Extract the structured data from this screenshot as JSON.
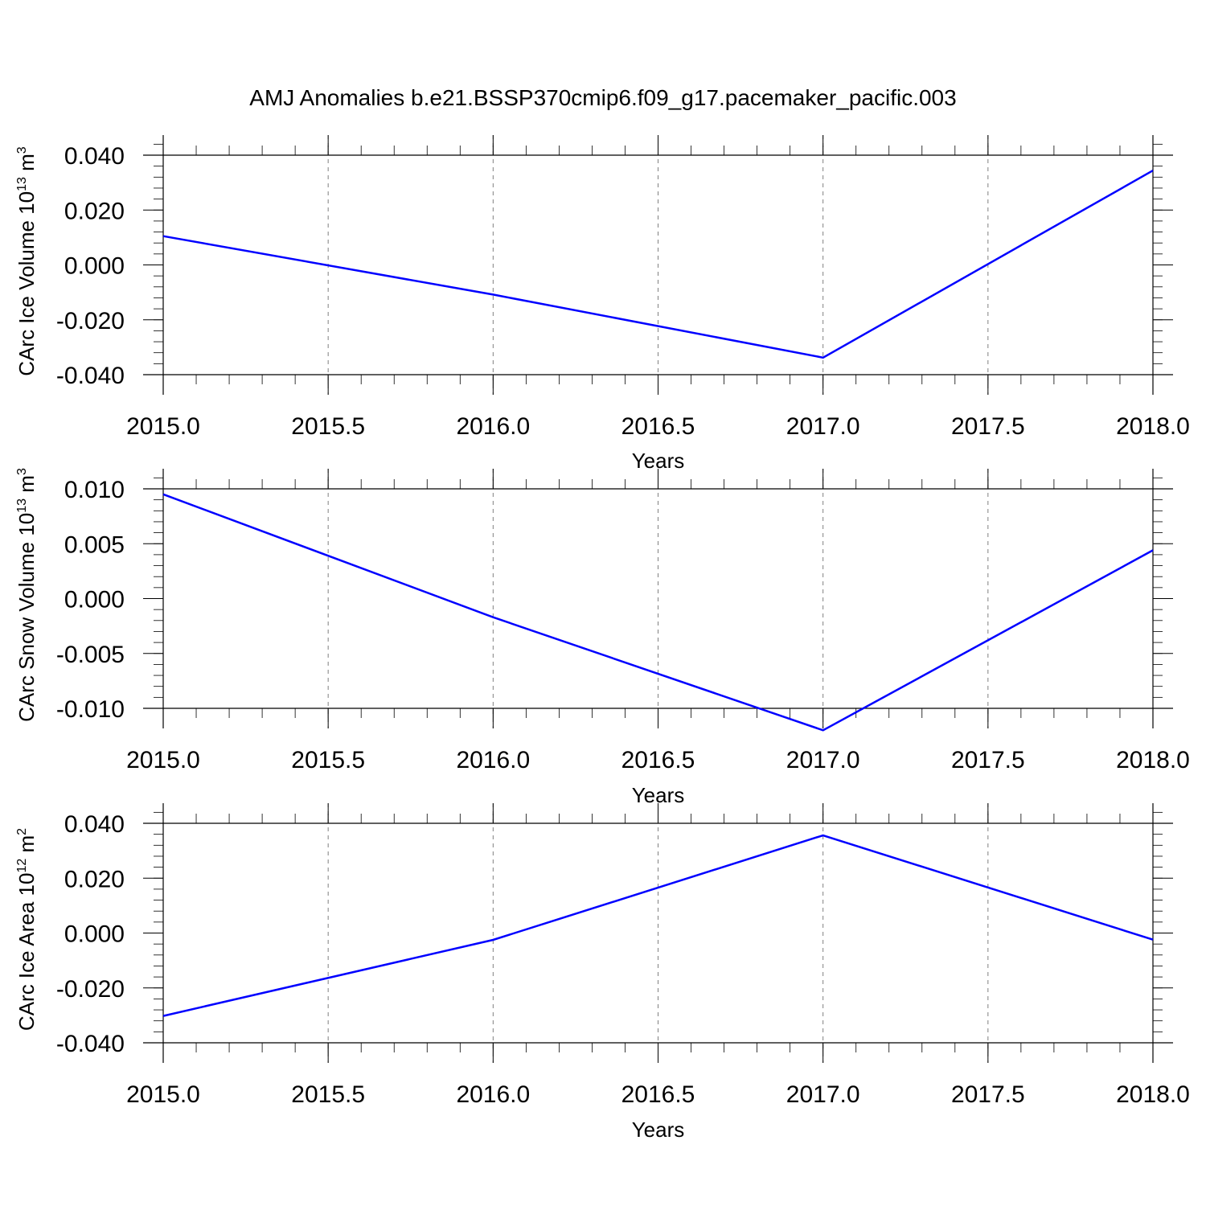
{
  "figure_title": "AMJ Anomalies b.e21.BSSP370cmip6.f09_g17.pacemaker_pacific.003",
  "colors": {
    "line": "#0000ff",
    "axis": "#000000",
    "grid": "#808080"
  },
  "chart_data": [
    {
      "type": "line",
      "ylabel": {
        "main": "CArc Ice Volume 10",
        "sup": "13",
        "unit": " m",
        "unit_sup": "3"
      },
      "xlabel": "Years",
      "xlim": [
        2015.0,
        2018.0
      ],
      "ylim": [
        -0.04,
        0.04
      ],
      "xticks": [
        2015.0,
        2015.5,
        2016.0,
        2016.5,
        2017.0,
        2017.5,
        2018.0
      ],
      "xtick_labels": [
        "2015.0",
        "2015.5",
        "2016.0",
        "2016.5",
        "2017.0",
        "2017.5",
        "2018.0"
      ],
      "yticks": [
        0.04,
        0.02,
        0.0,
        -0.02,
        -0.04
      ],
      "ytick_labels": [
        "0.040",
        "0.020",
        "0.000",
        "-0.020",
        "-0.040"
      ],
      "grid": "vertical dashed",
      "series": [
        {
          "x": [
            2015,
            2016,
            2017,
            2018
          ],
          "y": [
            0.0105,
            -0.0108,
            -0.0338,
            0.0344
          ]
        }
      ]
    },
    {
      "type": "line",
      "ylabel": {
        "main": "CArc Snow Volume 10",
        "sup": "13",
        "unit": " m",
        "unit_sup": "3"
      },
      "xlabel": "Years",
      "xlim": [
        2015.0,
        2018.0
      ],
      "ylim": [
        -0.012,
        0.012
      ],
      "xticks": [
        2015.0,
        2015.5,
        2016.0,
        2016.5,
        2017.0,
        2017.5,
        2018.0
      ],
      "xtick_labels": [
        "2015.0",
        "2015.5",
        "2016.0",
        "2016.5",
        "2017.0",
        "2017.5",
        "2018.0"
      ],
      "yticks": [
        0.01,
        0.005,
        0.0,
        -0.005,
        -0.01
      ],
      "ytick_labels": [
        "0.010",
        "0.005",
        "0.000",
        "-0.005",
        "-0.010"
      ],
      "grid": "vertical dashed",
      "series": [
        {
          "x": [
            2015,
            2016,
            2017,
            2018
          ],
          "y": [
            0.0095,
            -0.0017,
            -0.012,
            0.0044
          ]
        }
      ]
    },
    {
      "type": "line",
      "ylabel": {
        "main": "CArc Ice Area 10",
        "sup": "12",
        "unit": " m",
        "unit_sup": "2"
      },
      "xlabel": "Years",
      "xlim": [
        2015.0,
        2018.0
      ],
      "ylim": [
        -0.04,
        0.0475
      ],
      "xticks": [
        2015.0,
        2015.5,
        2016.0,
        2016.5,
        2017.0,
        2017.5,
        2018.0
      ],
      "xtick_labels": [
        "2015.0",
        "2015.5",
        "2016.0",
        "2016.5",
        "2017.0",
        "2017.5",
        "2018.0"
      ],
      "yticks": [
        0.04,
        0.02,
        0.0,
        -0.02,
        -0.04
      ],
      "ytick_labels": [
        "0.040",
        "0.020",
        "0.000",
        "-0.020",
        "-0.040"
      ],
      "grid": "vertical dashed",
      "series": [
        {
          "x": [
            2015,
            2016,
            2017,
            2018
          ],
          "y": [
            -0.0302,
            -0.0025,
            0.0356,
            -0.0024
          ]
        }
      ]
    }
  ]
}
